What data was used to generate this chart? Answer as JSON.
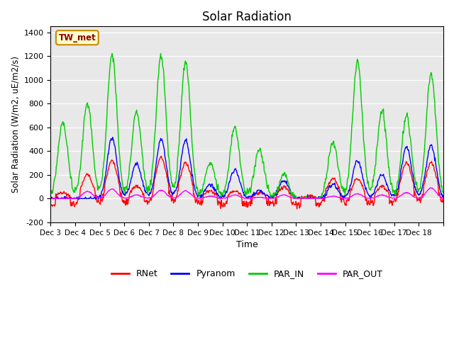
{
  "title": "Solar Radiation",
  "ylabel": "Solar Radiation (W/m2, uE/m2/s)",
  "xlabel": "Time",
  "ylim": [
    -200,
    1450
  ],
  "yticks": [
    -200,
    0,
    200,
    400,
    600,
    800,
    1000,
    1200,
    1400
  ],
  "xtick_positions": [
    0,
    1,
    2,
    3,
    4,
    5,
    6,
    7,
    8,
    9,
    10,
    11,
    12,
    13,
    14,
    15,
    16
  ],
  "xtick_labels": [
    "Dec 3",
    "Dec 4",
    "Dec 5",
    "Dec 6",
    "Dec 7",
    "Dec 8",
    "Dec 9",
    "Dec 10",
    "Dec 11",
    "Dec 12",
    "Dec 13",
    "Dec 14",
    "Dec 15",
    "Dec 16",
    "Dec 17",
    "Dec 18",
    ""
  ],
  "colors": {
    "RNet": "#ff0000",
    "Pyranom": "#0000ff",
    "PAR_IN": "#00cc00",
    "PAR_OUT": "#ff00ff"
  },
  "annotation_text": "TW_met",
  "annotation_bbox": {
    "facecolor": "#ffffcc",
    "edgecolor": "#cc8800"
  },
  "background_color": "#e8e8e8",
  "fig_background": "#ffffff",
  "linewidth": 1.0,
  "n_days": 16,
  "pts_per_day": 48,
  "day_peaks_par": [
    650,
    800,
    1220,
    730,
    1200,
    1150,
    300,
    590,
    420,
    210,
    0,
    480,
    1150,
    730,
    700,
    1060
  ],
  "day_peaks_pyr": [
    0,
    0,
    510,
    300,
    500,
    490,
    120,
    240,
    70,
    150,
    0,
    120,
    320,
    200,
    440,
    450
  ],
  "day_peaks_out": [
    0,
    60,
    80,
    30,
    70,
    65,
    20,
    30,
    10,
    30,
    0,
    20,
    40,
    30,
    50,
    90
  ],
  "day_peaks_rnet": [
    50,
    200,
    320,
    100,
    350,
    300,
    70,
    60,
    50,
    100,
    20,
    170,
    170,
    100,
    300,
    300
  ]
}
